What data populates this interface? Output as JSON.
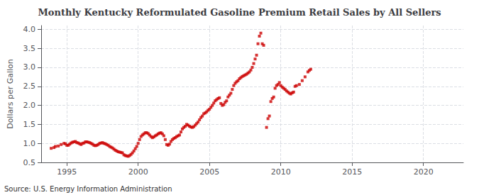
{
  "chart_data": {
    "type": "scatter",
    "title": "Monthly Kentucky Reformulated Gasoline Premium Retail Sales by All Sellers",
    "ylabel": "Dollars per Gallon",
    "annotations": [
      "Source: U.S. Energy Information Administration"
    ],
    "color": "#cc0000",
    "marker": "square",
    "grid": true,
    "xlim": [
      1993.2,
      2022.8
    ],
    "ylim": [
      0.5,
      4.1
    ],
    "xticks": [
      1995,
      2000,
      2005,
      2010,
      2015,
      2020
    ],
    "yticks": [
      0.5,
      {
        "value": 1.0,
        "label": "1.0"
      },
      1.5,
      {
        "value": 2.0,
        "label": "2.0"
      },
      2.5,
      {
        "value": 3.0,
        "label": "3.0"
      },
      3.5,
      {
        "value": 4.0,
        "label": "4.0"
      }
    ],
    "x": [
      1993.9,
      1994.1,
      1994.2,
      1994.4,
      1994.6,
      1994.8,
      1994.9,
      1995.0,
      1995.1,
      1995.2,
      1995.3,
      1995.4,
      1995.5,
      1995.6,
      1995.7,
      1995.8,
      1995.9,
      1996.0,
      1996.1,
      1996.2,
      1996.3,
      1996.4,
      1996.5,
      1996.6,
      1996.7,
      1996.8,
      1996.9,
      1997.0,
      1997.1,
      1997.2,
      1997.3,
      1997.4,
      1997.5,
      1997.6,
      1997.7,
      1997.8,
      1997.9,
      1998.0,
      1998.1,
      1998.2,
      1998.3,
      1998.4,
      1998.5,
      1998.6,
      1998.7,
      1998.8,
      1998.9,
      1999.0,
      1999.1,
      1999.2,
      1999.3,
      1999.4,
      1999.5,
      1999.6,
      1999.7,
      1999.8,
      1999.9,
      2000.0,
      2000.1,
      2000.2,
      2000.3,
      2000.4,
      2000.5,
      2000.6,
      2000.7,
      2000.8,
      2000.9,
      2001.0,
      2001.1,
      2001.2,
      2001.3,
      2001.4,
      2001.5,
      2001.6,
      2001.7,
      2001.8,
      2001.9,
      2002.0,
      2002.1,
      2002.2,
      2002.3,
      2002.4,
      2002.5,
      2002.6,
      2002.7,
      2002.8,
      2002.9,
      2003.0,
      2003.1,
      2003.2,
      2003.3,
      2003.4,
      2003.5,
      2003.6,
      2003.7,
      2003.8,
      2003.9,
      2004.0,
      2004.1,
      2004.2,
      2004.3,
      2004.4,
      2004.5,
      2004.6,
      2004.7,
      2004.8,
      2004.9,
      2005.0,
      2005.1,
      2005.2,
      2005.3,
      2005.4,
      2005.5,
      2005.6,
      2005.7,
      2005.8,
      2005.9,
      2006.0,
      2006.1,
      2006.2,
      2006.3,
      2006.4,
      2006.5,
      2006.6,
      2006.7,
      2006.8,
      2006.9,
      2007.0,
      2007.1,
      2007.2,
      2007.3,
      2007.4,
      2007.5,
      2007.6,
      2007.7,
      2007.8,
      2007.9,
      2008.0,
      2008.1,
      2008.2,
      2008.3,
      2008.4,
      2008.5,
      2008.6,
      2008.7,
      2008.8,
      2009.0,
      2009.1,
      2009.2,
      2009.3,
      2009.4,
      2009.5,
      2009.6,
      2009.7,
      2009.8,
      2009.9,
      2010.0,
      2010.1,
      2010.2,
      2010.3,
      2010.4,
      2010.5,
      2010.6,
      2010.7,
      2010.8,
      2010.9,
      2011.0,
      2011.1,
      2011.3,
      2011.5,
      2011.7,
      2011.9,
      2012.0,
      2012.1
    ],
    "values": [
      0.87,
      0.89,
      0.92,
      0.93,
      0.97,
      1.0,
      0.99,
      0.95,
      0.95,
      0.98,
      1.01,
      1.03,
      1.04,
      1.05,
      1.02,
      1.01,
      0.99,
      0.97,
      1.0,
      1.01,
      1.04,
      1.04,
      1.03,
      1.02,
      1.0,
      0.98,
      0.95,
      0.94,
      0.95,
      0.97,
      1.0,
      1.01,
      1.02,
      1.0,
      0.99,
      0.97,
      0.95,
      0.92,
      0.9,
      0.88,
      0.85,
      0.82,
      0.8,
      0.78,
      0.77,
      0.76,
      0.75,
      0.7,
      0.68,
      0.67,
      0.66,
      0.68,
      0.71,
      0.75,
      0.8,
      0.86,
      0.92,
      1.0,
      1.1,
      1.18,
      1.22,
      1.25,
      1.28,
      1.28,
      1.26,
      1.22,
      1.18,
      1.15,
      1.17,
      1.2,
      1.22,
      1.25,
      1.27,
      1.28,
      1.25,
      1.2,
      1.1,
      0.97,
      0.95,
      0.98,
      1.05,
      1.1,
      1.13,
      1.15,
      1.18,
      1.2,
      1.22,
      1.3,
      1.38,
      1.42,
      1.45,
      1.5,
      1.48,
      1.45,
      1.43,
      1.42,
      1.44,
      1.48,
      1.52,
      1.56,
      1.62,
      1.68,
      1.72,
      1.78,
      1.8,
      1.83,
      1.87,
      1.9,
      1.95,
      2.0,
      2.06,
      2.12,
      2.15,
      2.18,
      2.2,
      2.05,
      2.0,
      2.02,
      2.08,
      2.12,
      2.22,
      2.27,
      2.32,
      2.42,
      2.52,
      2.58,
      2.62,
      2.65,
      2.7,
      2.73,
      2.76,
      2.78,
      2.8,
      2.82,
      2.85,
      2.88,
      2.93,
      3.0,
      3.1,
      3.22,
      3.32,
      3.62,
      3.82,
      3.9,
      3.62,
      3.58,
      1.42,
      1.65,
      1.72,
      2.1,
      2.18,
      2.22,
      2.45,
      2.52,
      2.55,
      2.6,
      2.52,
      2.48,
      2.45,
      2.42,
      2.38,
      2.35,
      2.32,
      2.3,
      2.33,
      2.35,
      2.5,
      2.52,
      2.55,
      2.65,
      2.75,
      2.88,
      2.92,
      2.95
    ]
  }
}
